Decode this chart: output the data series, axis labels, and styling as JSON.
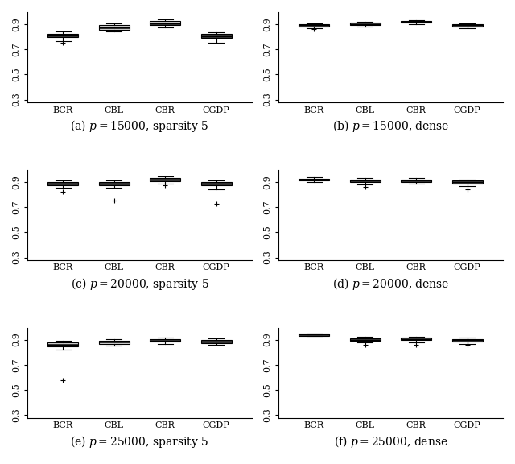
{
  "subplots": [
    {
      "label": "(a) $p = 15000$, sparsity 5",
      "categories": [
        "BCR",
        "CBL",
        "CBR",
        "CGDP"
      ],
      "boxes": [
        {
          "q1": 0.795,
          "median": 0.81,
          "q3": 0.825,
          "whislo": 0.765,
          "whishi": 0.84,
          "fliers": [
            0.755
          ]
        },
        {
          "q1": 0.855,
          "median": 0.875,
          "q3": 0.893,
          "whislo": 0.84,
          "whishi": 0.908,
          "fliers": []
        },
        {
          "q1": 0.893,
          "median": 0.908,
          "q3": 0.924,
          "whislo": 0.875,
          "whishi": 0.938,
          "fliers": []
        },
        {
          "q1": 0.79,
          "median": 0.806,
          "q3": 0.82,
          "whislo": 0.75,
          "whishi": 0.835,
          "fliers": []
        }
      ]
    },
    {
      "label": "(b) $p = 15000$, dense",
      "categories": [
        "BCR",
        "CBL",
        "CBR",
        "CGDP"
      ],
      "boxes": [
        {
          "q1": 0.883,
          "median": 0.893,
          "q3": 0.9,
          "whislo": 0.867,
          "whishi": 0.908,
          "fliers": [
            0.858
          ]
        },
        {
          "q1": 0.892,
          "median": 0.9,
          "q3": 0.91,
          "whislo": 0.88,
          "whishi": 0.917,
          "fliers": []
        },
        {
          "q1": 0.912,
          "median": 0.92,
          "q3": 0.926,
          "whislo": 0.902,
          "whishi": 0.933,
          "fliers": []
        },
        {
          "q1": 0.88,
          "median": 0.89,
          "q3": 0.898,
          "whislo": 0.868,
          "whishi": 0.905,
          "fliers": []
        }
      ]
    },
    {
      "label": "(c) $p = 20000$, sparsity 5",
      "categories": [
        "BCR",
        "CBL",
        "CBR",
        "CGDP"
      ],
      "boxes": [
        {
          "q1": 0.872,
          "median": 0.887,
          "q3": 0.897,
          "whislo": 0.852,
          "whishi": 0.908,
          "fliers": [
            0.82
          ]
        },
        {
          "q1": 0.872,
          "median": 0.887,
          "q3": 0.9,
          "whislo": 0.853,
          "whishi": 0.912,
          "fliers": [
            0.748
          ]
        },
        {
          "q1": 0.902,
          "median": 0.917,
          "q3": 0.928,
          "whislo": 0.888,
          "whishi": 0.94,
          "fliers": [
            0.87
          ]
        },
        {
          "q1": 0.87,
          "median": 0.885,
          "q3": 0.898,
          "whislo": 0.84,
          "whishi": 0.908,
          "fliers": [
            0.728
          ]
        }
      ]
    },
    {
      "label": "(d) $p = 20000$, dense",
      "categories": [
        "BCR",
        "CBL",
        "CBR",
        "CGDP"
      ],
      "boxes": [
        {
          "q1": 0.908,
          "median": 0.918,
          "q3": 0.926,
          "whislo": 0.898,
          "whishi": 0.934,
          "fliers": []
        },
        {
          "q1": 0.898,
          "median": 0.91,
          "q3": 0.92,
          "whislo": 0.882,
          "whishi": 0.928,
          "fliers": [
            0.86
          ]
        },
        {
          "q1": 0.9,
          "median": 0.91,
          "q3": 0.92,
          "whislo": 0.885,
          "whishi": 0.928,
          "fliers": []
        },
        {
          "q1": 0.888,
          "median": 0.898,
          "q3": 0.91,
          "whislo": 0.868,
          "whishi": 0.92,
          "fliers": [
            0.842
          ]
        }
      ]
    },
    {
      "label": "(e) $p = 25000$, sparsity 5",
      "categories": [
        "BCR",
        "CBL",
        "CBR",
        "CGDP"
      ],
      "boxes": [
        {
          "q1": 0.845,
          "median": 0.862,
          "q3": 0.876,
          "whislo": 0.823,
          "whishi": 0.89,
          "fliers": [
            0.58
          ]
        },
        {
          "q1": 0.868,
          "median": 0.882,
          "q3": 0.893,
          "whislo": 0.856,
          "whishi": 0.904,
          "fliers": []
        },
        {
          "q1": 0.882,
          "median": 0.894,
          "q3": 0.905,
          "whislo": 0.866,
          "whishi": 0.916,
          "fliers": []
        },
        {
          "q1": 0.874,
          "median": 0.886,
          "q3": 0.897,
          "whislo": 0.857,
          "whishi": 0.908,
          "fliers": []
        }
      ]
    },
    {
      "label": "(f) $p = 25000$, dense",
      "categories": [
        "BCR",
        "CBL",
        "CBR",
        "CGDP"
      ],
      "boxes": [
        {
          "q1": 0.93,
          "median": 0.94,
          "q3": 0.946,
          "whislo": 0.928,
          "whishi": 0.95,
          "fliers": []
        },
        {
          "q1": 0.892,
          "median": 0.9,
          "q3": 0.91,
          "whislo": 0.876,
          "whishi": 0.92,
          "fliers": [
            0.858
          ]
        },
        {
          "q1": 0.895,
          "median": 0.906,
          "q3": 0.916,
          "whislo": 0.878,
          "whishi": 0.926,
          "fliers": [
            0.86
          ]
        },
        {
          "q1": 0.884,
          "median": 0.895,
          "q3": 0.906,
          "whislo": 0.868,
          "whishi": 0.917,
          "fliers": [
            0.86
          ]
        }
      ]
    }
  ],
  "ylim": [
    0.28,
    0.995
  ],
  "yticks": [
    0.3,
    0.5,
    0.7,
    0.9
  ],
  "box_color": "#d3d3d3",
  "median_color": "black",
  "whisker_color": "black",
  "flier_marker": "+",
  "flier_color": "black",
  "label_fontsize": 10,
  "tick_fontsize": 8,
  "background_color": "white"
}
